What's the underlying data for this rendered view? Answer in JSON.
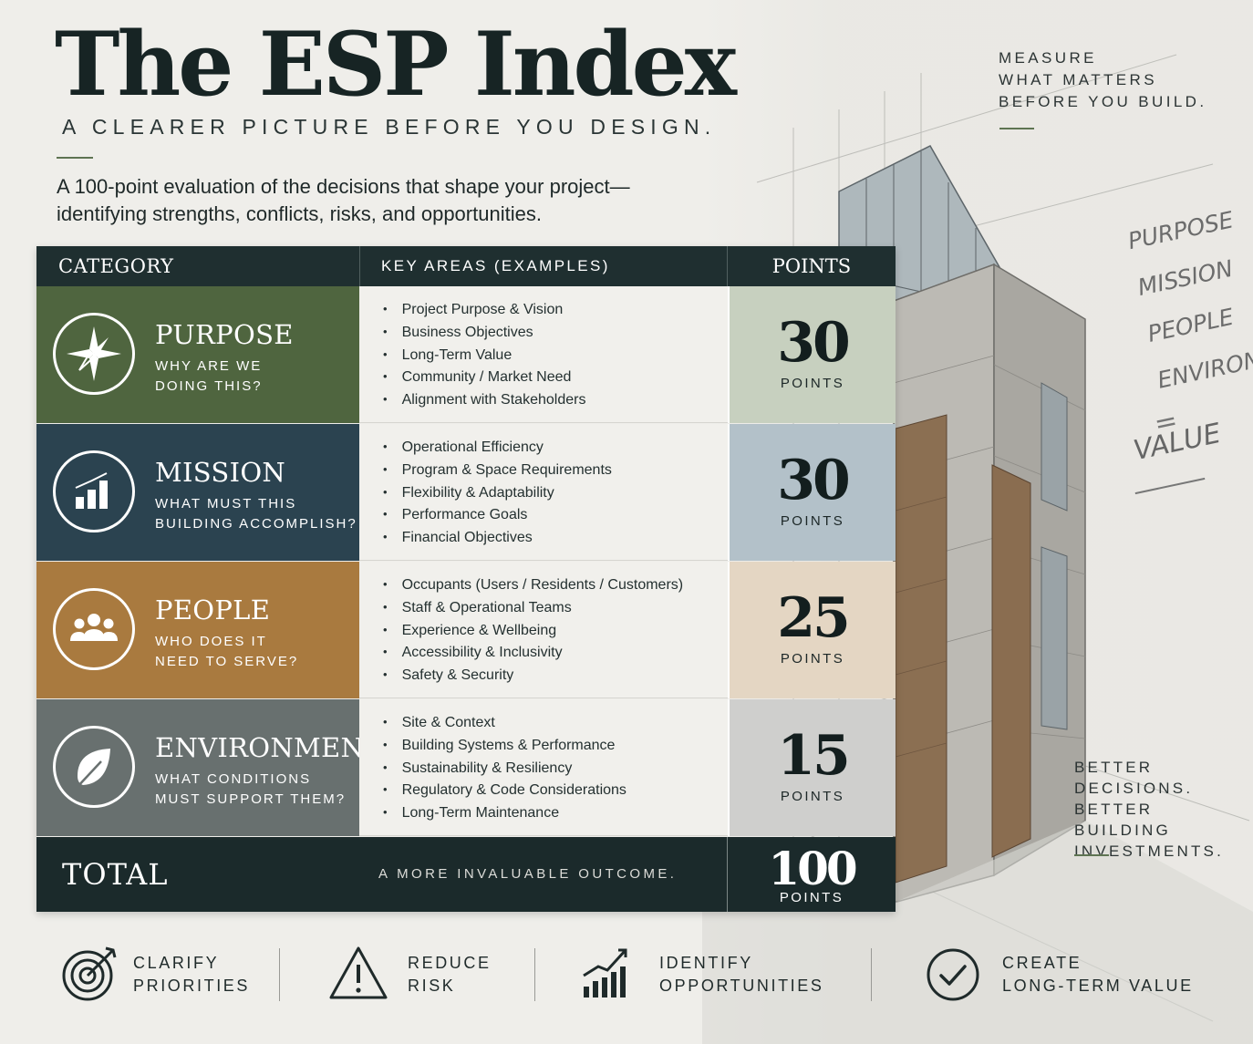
{
  "header": {
    "title": "The ESP Index",
    "subtitle": "A CLEARER PICTURE BEFORE YOU DESIGN.",
    "intro": [
      "A 100-point evaluation of the decisions that shape your project—",
      "identifying strengths, conflicts, risks, and opportunities."
    ]
  },
  "side": {
    "tagline_top": [
      "MEASURE",
      "WHAT MATTERS",
      "BEFORE YOU BUILD."
    ],
    "tagline_bottom": [
      "BETTER",
      "DECISIONS.",
      "BETTER BUILDING",
      "INVESTMENTS."
    ],
    "hand_notes": [
      "PURPOSE",
      "MISSION",
      "PEOPLE",
      "ENVIRONMENT"
    ],
    "hand_eq": "=",
    "hand_value": "VALUE"
  },
  "table": {
    "headers": {
      "category": "CATEGORY",
      "key_areas": "KEY AREAS (EXAMPLES)",
      "points": "POINTS"
    },
    "rows": [
      {
        "name": "PURPOSE",
        "question": [
          "WHY ARE WE",
          "DOING THIS?"
        ],
        "icon": "compass-icon",
        "color": "#4f653f",
        "points_bg": "#c7d0bf",
        "points": "30",
        "points_label": "POINTS",
        "items": [
          "Project Purpose & Vision",
          "Business Objectives",
          "Long-Term Value",
          "Community / Market Need",
          "Alignment with Stakeholders"
        ]
      },
      {
        "name": "MISSION",
        "question": [
          "WHAT MUST THIS",
          "BUILDING ACCOMPLISH?"
        ],
        "icon": "bar-chart-icon",
        "color": "#2b4350",
        "points_bg": "#b3c1c9",
        "points": "30",
        "points_label": "POINTS",
        "items": [
          "Operational Efficiency",
          "Program & Space Requirements",
          "Flexibility & Adaptability",
          "Performance Goals",
          "Financial Objectives"
        ]
      },
      {
        "name": "PEOPLE",
        "question": [
          "WHO DOES IT",
          "NEED TO SERVE?"
        ],
        "icon": "people-icon",
        "color": "#a97a3f",
        "points_bg": "#e4d6c3",
        "points": "25",
        "points_label": "POINTS",
        "items": [
          "Occupants (Users / Residents / Customers)",
          "Staff & Operational Teams",
          "Experience & Wellbeing",
          "Accessibility & Inclusivity",
          "Safety & Security"
        ]
      },
      {
        "name": "ENVIRONMENT",
        "question": [
          "WHAT CONDITIONS",
          "MUST SUPPORT THEM?"
        ],
        "icon": "leaf-icon",
        "color": "#68706f",
        "points_bg": "#cfcfcd",
        "points": "15",
        "points_label": "POINTS",
        "items": [
          "Site & Context",
          "Building Systems & Performance",
          "Sustainability & Resiliency",
          "Regulatory & Code Considerations",
          "Long-Term Maintenance"
        ]
      }
    ],
    "total": {
      "label": "TOTAL",
      "tagline": "A MORE INVALUABLE OUTCOME.",
      "points": "100",
      "points_label": "POINTS"
    }
  },
  "benefits": [
    {
      "icon": "target-icon",
      "lines": [
        "CLARIFY",
        "PRIORITIES"
      ]
    },
    {
      "icon": "warning-icon",
      "lines": [
        "REDUCE",
        "RISK"
      ]
    },
    {
      "icon": "growth-chart-icon",
      "lines": [
        "IDENTIFY",
        "OPPORTUNITIES"
      ]
    },
    {
      "icon": "checkmark-circle-icon",
      "lines": [
        "CREATE",
        "LONG-TERM VALUE"
      ]
    }
  ]
}
